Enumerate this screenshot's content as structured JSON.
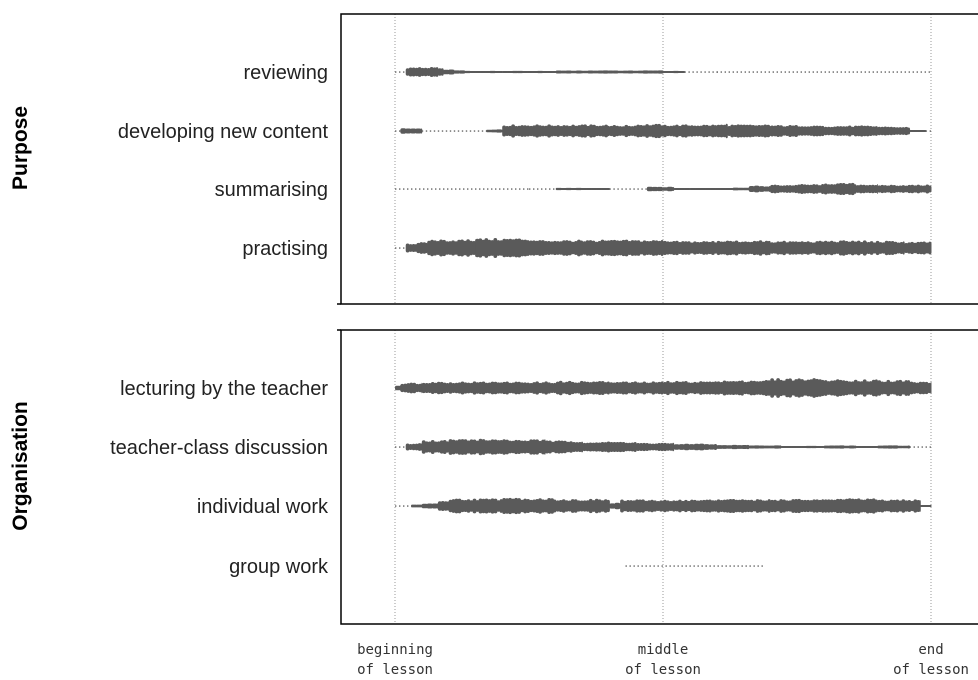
{
  "chart_data": {
    "type": "bar",
    "colors": {
      "mark": "#5a5a5a",
      "grid": "#9a9a9a",
      "frame": "#000000"
    },
    "x_ticks": [
      {
        "line1": "beginning",
        "line2": "of lesson",
        "pos": 0.0
      },
      {
        "line1": "middle",
        "line2": "of lesson",
        "pos": 0.5
      },
      {
        "line1": "end",
        "line2": "of lesson",
        "pos": 1.0
      }
    ],
    "xlim": [
      0,
      1
    ],
    "panels": [
      {
        "group": "Purpose",
        "categories": [
          "reviewing",
          "developing new content",
          "summarising",
          "practising"
        ],
        "series": [
          {
            "segments": [
              [
                0.0,
                0.02,
                1
              ],
              [
                0.02,
                0.08,
                9
              ],
              [
                0.08,
                0.09,
                7
              ],
              [
                0.09,
                0.11,
                5
              ],
              [
                0.11,
                0.13,
                3
              ],
              [
                0.13,
                0.2,
                2
              ],
              [
                0.2,
                0.3,
                2
              ],
              [
                0.3,
                0.35,
                3
              ],
              [
                0.35,
                0.5,
                3
              ],
              [
                0.5,
                0.54,
                2
              ],
              [
                0.54,
                0.6,
                1
              ],
              [
                0.6,
                1.0,
                1
              ]
            ]
          },
          {
            "segments": [
              [
                0.0,
                0.01,
                1
              ],
              [
                0.01,
                0.05,
                5
              ],
              [
                0.05,
                0.17,
                1
              ],
              [
                0.17,
                0.2,
                3
              ],
              [
                0.2,
                0.4,
                12
              ],
              [
                0.4,
                0.45,
                11
              ],
              [
                0.45,
                0.5,
                13
              ],
              [
                0.5,
                0.6,
                12
              ],
              [
                0.6,
                0.62,
                14
              ],
              [
                0.62,
                0.7,
                12
              ],
              [
                0.7,
                0.8,
                11
              ],
              [
                0.8,
                0.9,
                10
              ],
              [
                0.9,
                0.96,
                8
              ],
              [
                0.96,
                0.99,
                2
              ],
              [
                0.99,
                1.0,
                1
              ]
            ]
          },
          {
            "segments": [
              [
                0.0,
                0.25,
                1
              ],
              [
                0.25,
                0.3,
                1
              ],
              [
                0.3,
                0.4,
                2
              ],
              [
                0.4,
                0.47,
                1
              ],
              [
                0.47,
                0.52,
                4
              ],
              [
                0.52,
                0.55,
                2
              ],
              [
                0.55,
                0.63,
                2
              ],
              [
                0.63,
                0.66,
                3
              ],
              [
                0.66,
                0.7,
                6
              ],
              [
                0.7,
                0.75,
                8
              ],
              [
                0.75,
                0.8,
                9
              ],
              [
                0.8,
                0.86,
                11
              ],
              [
                0.86,
                0.9,
                9
              ],
              [
                0.9,
                1.0,
                8
              ]
            ]
          },
          {
            "segments": [
              [
                0.0,
                0.02,
                1
              ],
              [
                0.02,
                0.04,
                9
              ],
              [
                0.04,
                0.06,
                12
              ],
              [
                0.06,
                0.15,
                16
              ],
              [
                0.15,
                0.25,
                18
              ],
              [
                0.25,
                0.35,
                15
              ],
              [
                0.35,
                0.5,
                15
              ],
              [
                0.5,
                0.6,
                13
              ],
              [
                0.6,
                0.7,
                14
              ],
              [
                0.7,
                0.8,
                13
              ],
              [
                0.8,
                0.88,
                14
              ],
              [
                0.88,
                0.95,
                13
              ],
              [
                0.95,
                1.0,
                12
              ]
            ]
          }
        ]
      },
      {
        "group": "Organisation",
        "categories": [
          "lecturing by the teacher",
          "teacher-class discussion",
          "individual work",
          "group work"
        ],
        "series": [
          {
            "segments": [
              [
                0.0,
                0.01,
                5
              ],
              [
                0.01,
                0.05,
                10
              ],
              [
                0.05,
                0.1,
                12
              ],
              [
                0.1,
                0.2,
                12
              ],
              [
                0.2,
                0.3,
                12
              ],
              [
                0.3,
                0.4,
                13
              ],
              [
                0.4,
                0.5,
                12
              ],
              [
                0.5,
                0.6,
                13
              ],
              [
                0.6,
                0.65,
                14
              ],
              [
                0.65,
                0.7,
                15
              ],
              [
                0.7,
                0.8,
                18
              ],
              [
                0.8,
                0.9,
                16
              ],
              [
                0.9,
                0.96,
                15
              ],
              [
                0.96,
                1.0,
                12
              ]
            ]
          },
          {
            "segments": [
              [
                0.0,
                0.02,
                1
              ],
              [
                0.02,
                0.05,
                7
              ],
              [
                0.05,
                0.1,
                13
              ],
              [
                0.1,
                0.2,
                15
              ],
              [
                0.2,
                0.28,
                14
              ],
              [
                0.28,
                0.35,
                12
              ],
              [
                0.35,
                0.45,
                10
              ],
              [
                0.45,
                0.52,
                8
              ],
              [
                0.52,
                0.6,
                6
              ],
              [
                0.6,
                0.66,
                4
              ],
              [
                0.66,
                0.72,
                3
              ],
              [
                0.72,
                0.8,
                2
              ],
              [
                0.8,
                0.86,
                3
              ],
              [
                0.86,
                0.9,
                2
              ],
              [
                0.9,
                0.96,
                3
              ],
              [
                0.96,
                1.0,
                1
              ]
            ]
          },
          {
            "segments": [
              [
                0.0,
                0.03,
                1
              ],
              [
                0.03,
                0.05,
                3
              ],
              [
                0.05,
                0.08,
                5
              ],
              [
                0.08,
                0.1,
                10
              ],
              [
                0.1,
                0.2,
                14
              ],
              [
                0.2,
                0.3,
                15
              ],
              [
                0.3,
                0.4,
                13
              ],
              [
                0.4,
                0.42,
                6
              ],
              [
                0.42,
                0.5,
                12
              ],
              [
                0.5,
                0.6,
                12
              ],
              [
                0.6,
                0.7,
                13
              ],
              [
                0.7,
                0.8,
                13
              ],
              [
                0.8,
                0.9,
                14
              ],
              [
                0.9,
                0.98,
                12
              ],
              [
                0.98,
                1.0,
                2
              ]
            ]
          },
          {
            "segments": [
              [
                0.43,
                0.69,
                1
              ]
            ]
          }
        ]
      }
    ]
  }
}
